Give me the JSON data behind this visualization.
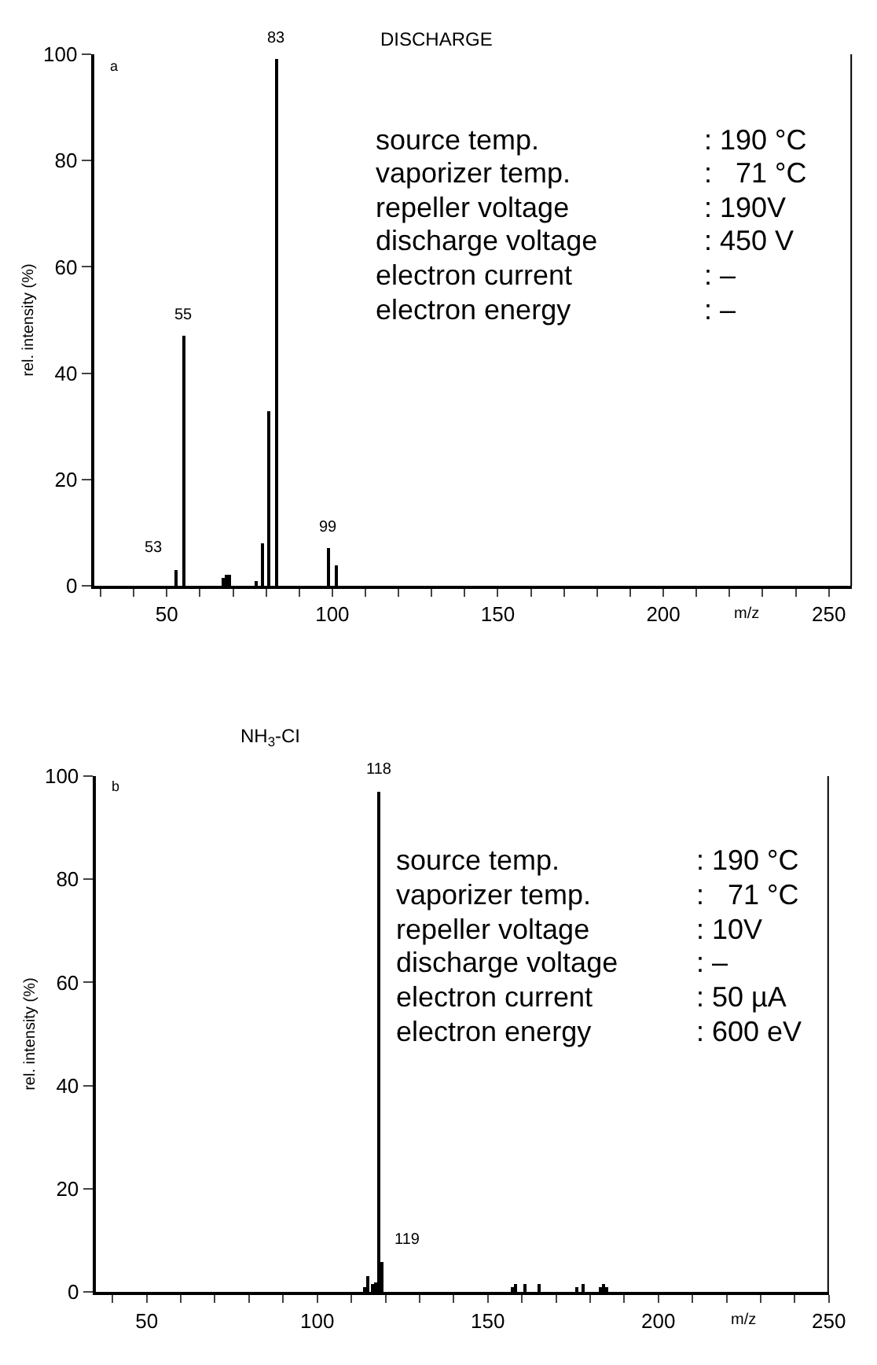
{
  "chart_data": [
    {
      "type": "bar",
      "title": "DISCHARGE",
      "xlabel": "m/z",
      "ylabel": "rel. intensity (%)",
      "x": [
        53,
        55,
        67,
        68,
        69,
        77,
        79,
        81,
        83,
        99,
        101
      ],
      "series": [
        {
          "color": "#000000",
          "values": [
            3,
            47,
            1.5,
            2,
            2,
            1,
            8,
            33,
            99,
            7,
            4
          ]
        }
      ],
      "xlim": [
        28,
        257
      ],
      "ylim": [
        0,
        100
      ],
      "xticks": [
        {
          "value": 30,
          "label": null
        },
        {
          "value": 40,
          "label": null
        },
        50,
        {
          "value": 60,
          "label": null
        },
        {
          "value": 70,
          "label": null
        },
        {
          "value": 80,
          "label": null
        },
        {
          "value": 90,
          "label": null
        },
        100,
        {
          "value": 110,
          "label": null
        },
        {
          "value": 120,
          "label": null
        },
        {
          "value": 130,
          "label": null
        },
        {
          "value": 140,
          "label": null
        },
        150,
        {
          "value": 160,
          "label": null
        },
        {
          "value": 170,
          "label": null
        },
        {
          "value": 180,
          "label": null
        },
        {
          "value": 190,
          "label": null
        },
        200,
        {
          "value": 210,
          "label": null
        },
        {
          "value": 220,
          "label": null
        },
        {
          "value": 230,
          "label": null
        },
        {
          "value": 240,
          "label": null
        },
        250
      ],
      "yticks": [
        0,
        20,
        40,
        60,
        80,
        100
      ],
      "annotations": [
        "a",
        "source temp.",
        ": 190 °C",
        "vaporizer temp.",
        ":   71 °C",
        "repeller voltage",
        ": 190V",
        "discharge voltage",
        ": 450 V",
        "electron current",
        ": –",
        "electron energy",
        ": –",
        {
          "text": "83",
          "x": 83,
          "y": 99
        },
        {
          "text": "55",
          "x": 55,
          "y": 47
        },
        {
          "text": "53",
          "x": 53,
          "y": 3
        },
        {
          "text": "99",
          "x": 99,
          "y": 7
        }
      ]
    },
    {
      "type": "bar",
      "title": "NH$_{3}$-CI",
      "xlabel": "m/z",
      "ylabel": "rel. intensity (%)",
      "x": [
        114,
        115,
        116,
        117,
        118,
        119,
        157,
        158,
        161,
        165,
        176,
        178,
        183,
        184,
        185
      ],
      "series": [
        {
          "color": "#000000",
          "values": [
            1,
            3,
            1.5,
            2,
            97,
            6,
            1,
            1.5,
            1.5,
            1.5,
            1,
            1.5,
            1,
            1.5,
            1
          ]
        }
      ],
      "xlim": [
        35,
        250
      ],
      "ylim": [
        0,
        100
      ],
      "xticks": [
        {
          "value": 40,
          "label": null
        },
        50,
        {
          "value": 60,
          "label": null
        },
        {
          "value": 70,
          "label": null
        },
        {
          "value": 80,
          "label": null
        },
        {
          "value": 90,
          "label": null
        },
        100,
        {
          "value": 110,
          "label": null
        },
        {
          "value": 120,
          "label": null
        },
        {
          "value": 130,
          "label": null
        },
        {
          "value": 140,
          "label": null
        },
        150,
        {
          "value": 160,
          "label": null
        },
        {
          "value": 170,
          "label": null
        },
        {
          "value": 180,
          "label": null
        },
        {
          "value": 190,
          "label": null
        },
        200,
        {
          "value": 210,
          "label": null
        },
        {
          "value": 220,
          "label": null
        },
        {
          "value": 230,
          "label": null
        },
        {
          "value": 240,
          "label": null
        },
        250
      ],
      "yticks": [
        0,
        20,
        40,
        60,
        80,
        100
      ],
      "annotations": [
        "b",
        "source temp.",
        ": 190 °C",
        "vaporizer temp.",
        ":   71 °C",
        "repeller voltage",
        ": 10V",
        "discharge voltage",
        ": –",
        "electron current",
        ": 50 µA",
        "electron energy",
        ": 600 eV",
        {
          "text": "118",
          "x": 118,
          "y": 97
        },
        {
          "text": "119",
          "x": 119,
          "y": 6
        }
      ]
    }
  ]
}
